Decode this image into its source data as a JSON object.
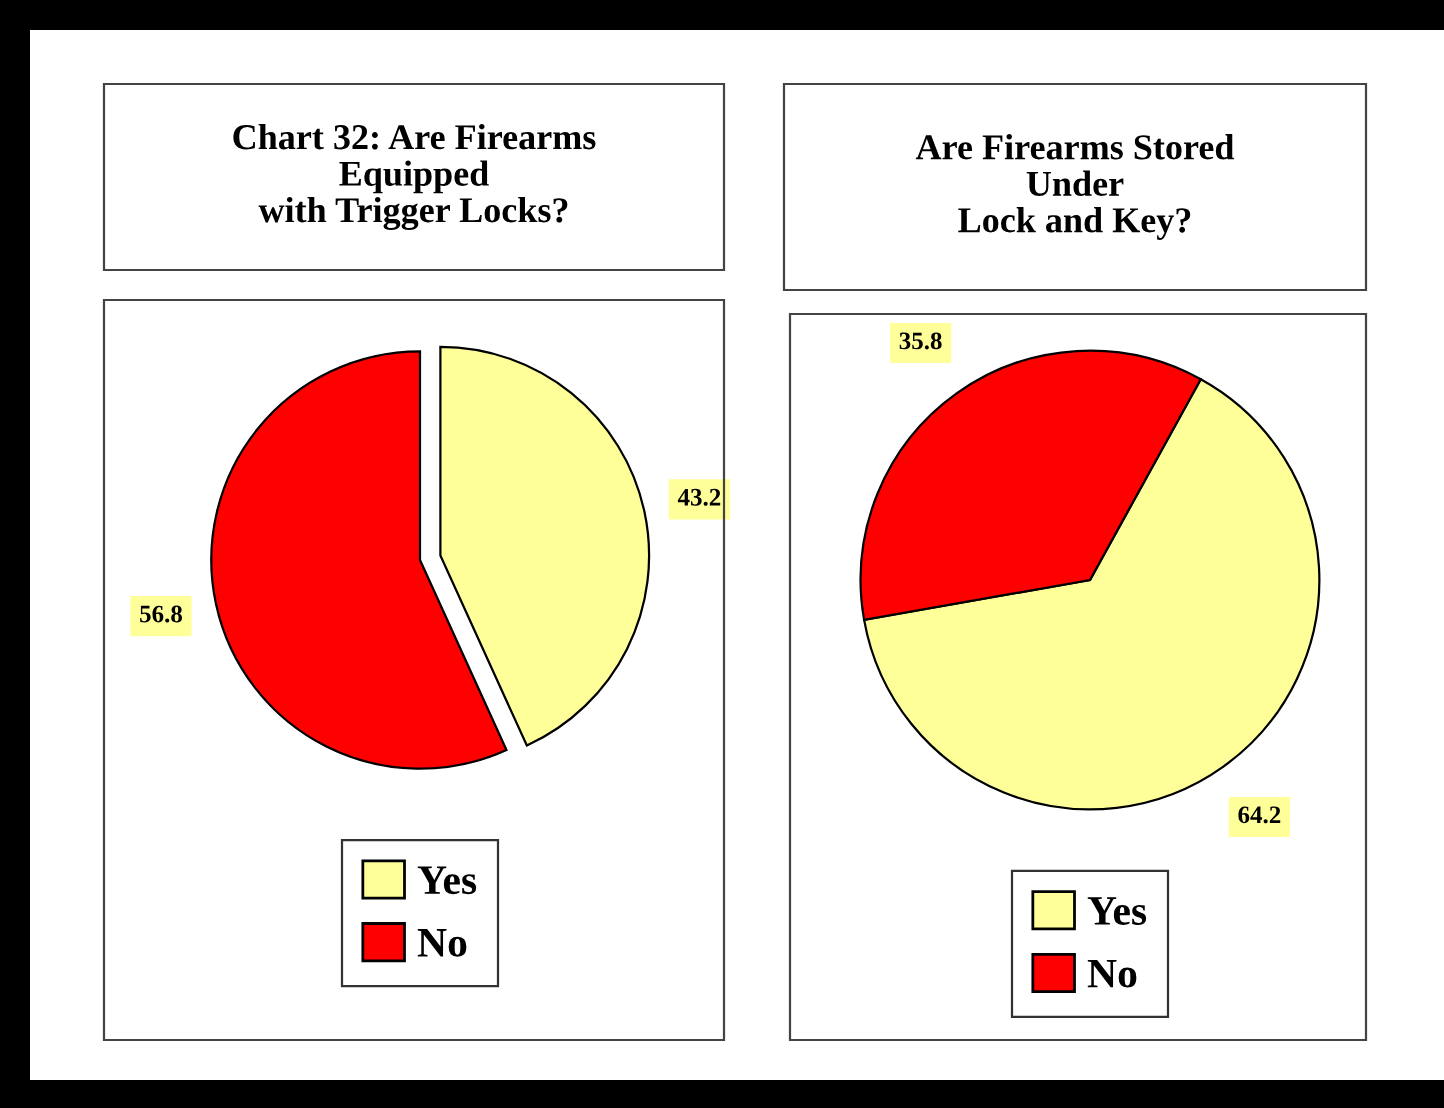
{
  "chart_data": [
    {
      "type": "pie",
      "title": "Chart 32: Are Firearms\nEquipped\nwith Trigger Locks?",
      "categories": [
        "Yes",
        "No"
      ],
      "values": [
        43.2,
        56.8
      ],
      "colors": [
        "#ffff99",
        "#ff0000"
      ],
      "data_labels": true,
      "legend": "bottom"
    },
    {
      "type": "pie",
      "title": "Are Firearms Stored\nUnder\nLock and Key?",
      "categories": [
        "Yes",
        "No"
      ],
      "values": [
        64.2,
        35.8
      ],
      "colors": [
        "#ffff99",
        "#ff0000"
      ],
      "data_labels": true,
      "legend": "bottom"
    }
  ]
}
